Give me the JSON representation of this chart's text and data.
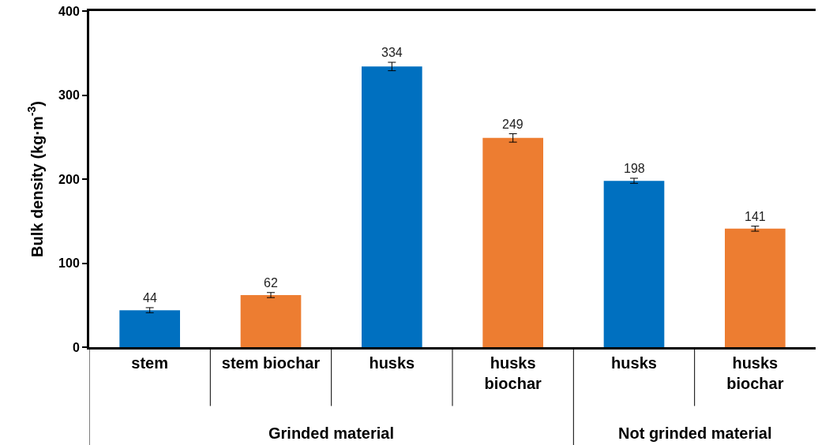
{
  "chart_data": {
    "type": "bar",
    "ylabel": "Bulk density (kg·m$^{-3}$)",
    "categories": [
      "stem",
      "stem biochar",
      "husks",
      "husks biochar",
      "husks",
      "husks biochar"
    ],
    "values": [
      44,
      62,
      334,
      249,
      198,
      141
    ],
    "colors": [
      "#0070c0",
      "#ed7d31",
      "#0070c0",
      "#ed7d31",
      "#0070c0",
      "#ed7d31"
    ],
    "errors": [
      3,
      3,
      5,
      5,
      3,
      3
    ],
    "data_labels": true,
    "ylim": [
      0,
      400
    ],
    "yticks": [
      0,
      100,
      200,
      300,
      400
    ],
    "annotations": [
      "Grinded material",
      "Not grinded material"
    ]
  }
}
